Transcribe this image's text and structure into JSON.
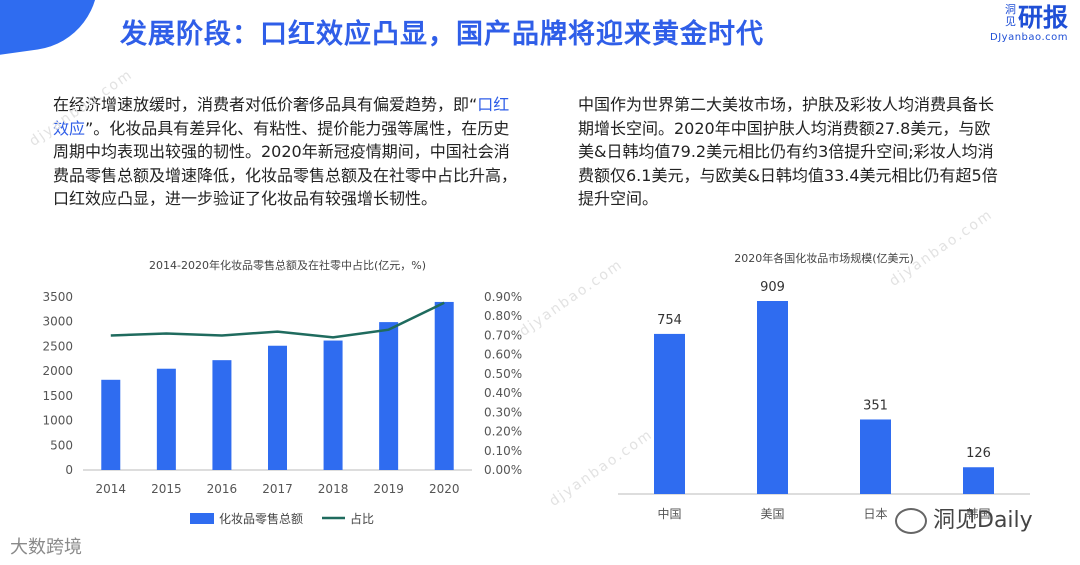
{
  "header": {
    "title": "发展阶段：口红效应凸显，国产品牌将迎来黄金时代",
    "brand_vertical": "洞见",
    "brand_name": "研报",
    "brand_url": "DJyanbao.com"
  },
  "paragraphs": {
    "left_before": "在经济增速放缓时，消费者对低价奢侈品具有偏爱趋势，即“",
    "left_highlight": "口红效应",
    "left_after": "”。化妆品具有差异化、有粘性、提价能力强等属性，在历史周期中均表现出较强的韧性。2020年新冠疫情期间，中国社会消费品零售总额及增速降低，化妆品零售总额及在社零中占比升高，口红效应凸显，进一步验证了化妆品有较强增长韧性。",
    "right": "中国作为世界第二大美妆市场，护肤及彩妆人均消费具备长期增长空间。2020年中国护肤人均消费额27.8美元，与欧美&日韩均值79.2美元相比仍有约3倍提升空间;彩妆人均消费额仅6.1美元，与欧美&日韩均值33.4美元相比仍有超5倍提升空间。"
  },
  "watermarks": {
    "text": "djyanbao.com"
  },
  "footer": {
    "left": "大数跨境",
    "right": "洞见Daily"
  },
  "colors": {
    "accent": "#2f5ee8",
    "bar": "#2f6cf0",
    "line": "#1f6b5e"
  },
  "chart_data": [
    {
      "type": "bar",
      "title": "2014-2020年化妆品零售总额及在社零中占比(亿元，%)",
      "categories": [
        "2014",
        "2015",
        "2016",
        "2017",
        "2018",
        "2019",
        "2020"
      ],
      "series": [
        {
          "name": "化妆品零售总额",
          "type": "bar",
          "axis": "left",
          "values": [
            1825,
            2049,
            2222,
            2514,
            2619,
            2992,
            3400
          ]
        },
        {
          "name": "占比",
          "type": "line",
          "axis": "right",
          "values": [
            0.7,
            0.71,
            0.7,
            0.72,
            0.69,
            0.73,
            0.87
          ]
        }
      ],
      "y_left": {
        "min": 0,
        "max": 3500,
        "ticks": [
          "0",
          "500",
          "1000",
          "1500",
          "2000",
          "2500",
          "3000",
          "3500"
        ]
      },
      "y_right": {
        "min": 0,
        "max": 0.9,
        "ticks": [
          "0.00%",
          "0.10%",
          "0.20%",
          "0.30%",
          "0.40%",
          "0.50%",
          "0.60%",
          "0.70%",
          "0.80%",
          "0.90%"
        ]
      },
      "grid": false,
      "legend": "bottom"
    },
    {
      "type": "bar",
      "title": "2020年各国化妆品市场规模(亿美元)",
      "categories": [
        "中国",
        "美国",
        "日本",
        "韩国"
      ],
      "values": [
        754,
        909,
        351,
        126
      ],
      "data_labels": [
        "754",
        "909",
        "351",
        "126"
      ],
      "ylim": [
        0,
        1000
      ],
      "grid": false
    }
  ]
}
